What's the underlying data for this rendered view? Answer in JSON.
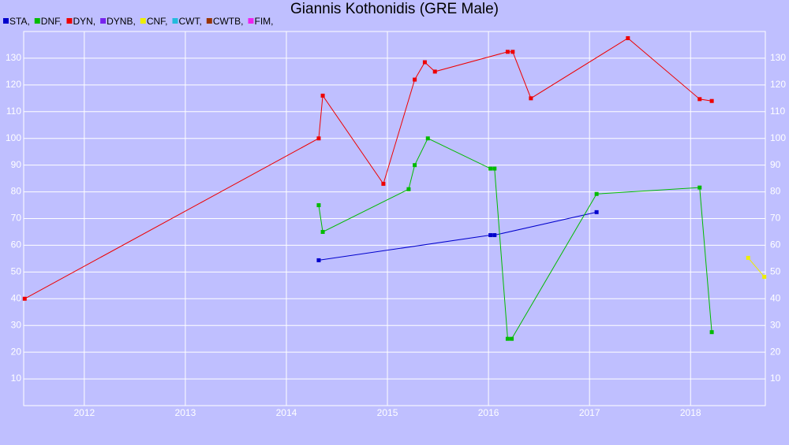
{
  "chart_data": {
    "type": "line",
    "title": "Giannis Kothonidis (GRE Male)",
    "xlim": [
      2011.4,
      2018.74
    ],
    "xticks": [
      2012,
      2013,
      2014,
      2015,
      2016,
      2017,
      2018
    ],
    "ylim": [
      0,
      140
    ],
    "yticks": [
      10,
      20,
      30,
      40,
      50,
      60,
      70,
      80,
      90,
      100,
      110,
      120,
      130
    ],
    "grid": true,
    "series": [
      {
        "name": "STA,",
        "color": "#0000cc",
        "x": [
          2014.32,
          2016.02,
          2016.06,
          2017.07
        ],
        "values": [
          54.4,
          63.8,
          63.8,
          72.4
        ]
      },
      {
        "name": "DNF,",
        "color": "#00bb00",
        "x": [
          2014.32,
          2014.36,
          2015.21,
          2015.27,
          2015.4,
          2016.02,
          2016.06,
          2016.19,
          2016.23,
          2017.07,
          2018.09,
          2018.21
        ],
        "values": [
          75,
          65,
          81,
          90,
          100,
          88.7,
          88.7,
          25,
          25,
          79.2,
          81.6,
          27.5
        ]
      },
      {
        "name": "DYN,",
        "color": "#ee0000",
        "x": [
          2011.41,
          2014.32,
          2014.36,
          2014.96,
          2015.27,
          2015.37,
          2015.47,
          2016.19,
          2016.24,
          2016.42,
          2017.38,
          2018.09,
          2018.21
        ],
        "values": [
          40,
          100,
          116,
          83,
          122,
          128.5,
          125,
          132.4,
          132.4,
          115,
          137.5,
          114.7,
          114
        ]
      },
      {
        "name": "DYNB,",
        "color": "#7722ee",
        "x": [],
        "values": []
      },
      {
        "name": "CNF,",
        "color": "#eeee00",
        "x": [
          2018.57,
          2018.73
        ],
        "values": [
          55.3,
          48.2
        ]
      },
      {
        "name": "CWT,",
        "color": "#22bbdd",
        "x": [],
        "values": []
      },
      {
        "name": "CWTB,",
        "color": "#993300",
        "x": [],
        "values": []
      },
      {
        "name": "FIM,",
        "color": "#ee22ee",
        "x": [],
        "values": []
      }
    ]
  }
}
